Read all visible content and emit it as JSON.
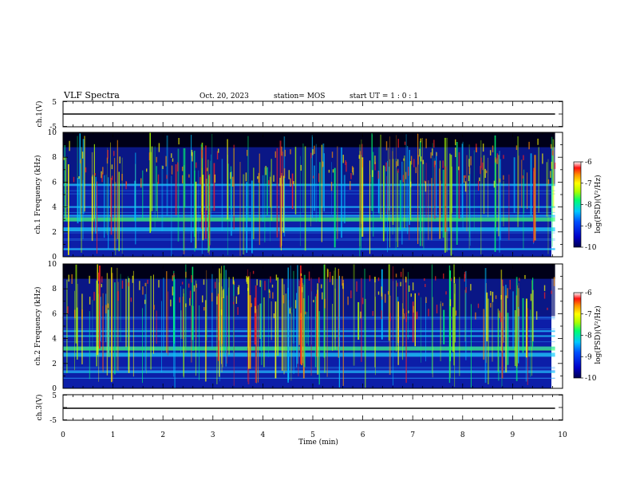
{
  "header": {
    "title": "VLF Spectra",
    "date": "Oct. 20, 2023",
    "station": "station= MOS",
    "start": "start  UT =   1 : 0  : 1"
  },
  "chart_data": [
    {
      "type": "line",
      "panel": "ch1-voltage",
      "ylabel": "ch.1(V)",
      "ylim": [
        -5,
        5
      ],
      "y_ticks": [
        "5",
        "-5"
      ],
      "xlim": [
        0,
        10
      ],
      "series": [
        {
          "x": [
            0,
            9.85
          ],
          "y": [
            0,
            0
          ]
        }
      ]
    },
    {
      "type": "heatmap",
      "panel": "ch1-spectrogram",
      "ylabel": "ch.1 Frequency (kHz)",
      "ylim": [
        0,
        10
      ],
      "y_ticks": [
        "0",
        "2",
        "4",
        "6",
        "8",
        "10"
      ],
      "xlim": [
        0,
        10
      ],
      "data_extent_min": 9.85,
      "colorbar": {
        "label": "log(PSD)(V²/Hz)",
        "range": [
          -10,
          -6
        ],
        "ticks": [
          "-6",
          "-7",
          "-8",
          "-9",
          "-10"
        ]
      },
      "bands_khz": [
        0.6,
        2.2,
        3.0,
        3.3,
        4.0,
        5.8
      ]
    },
    {
      "type": "heatmap",
      "panel": "ch2-spectrogram",
      "ylabel": "ch.2 Frequency (kHz)",
      "ylim": [
        0,
        10
      ],
      "y_ticks": [
        "0",
        "2",
        "4",
        "6",
        "8",
        "10"
      ],
      "xlim": [
        0,
        10
      ],
      "data_extent_min": 9.85,
      "colorbar": {
        "label": "log(PSD)(V²/Hz)",
        "range": [
          -10,
          -6
        ],
        "ticks": [
          "-6",
          "-7",
          "-8",
          "-9",
          "-10"
        ]
      },
      "bands_khz": [
        1.3,
        2.7,
        3.2,
        4.2,
        4.6
      ]
    },
    {
      "type": "line",
      "panel": "ch3-voltage",
      "ylabel": "ch.3(V)",
      "ylim": [
        -5,
        5
      ],
      "y_ticks": [
        "5",
        "-5"
      ],
      "xlim": [
        0,
        10
      ],
      "series": [
        {
          "x": [
            0,
            9.85
          ],
          "y": [
            0,
            0
          ]
        }
      ]
    }
  ],
  "x_axis": {
    "label": "Time (min)",
    "ticks": [
      "0",
      "1",
      "2",
      "3",
      "4",
      "5",
      "6",
      "7",
      "8",
      "9",
      "10"
    ]
  }
}
